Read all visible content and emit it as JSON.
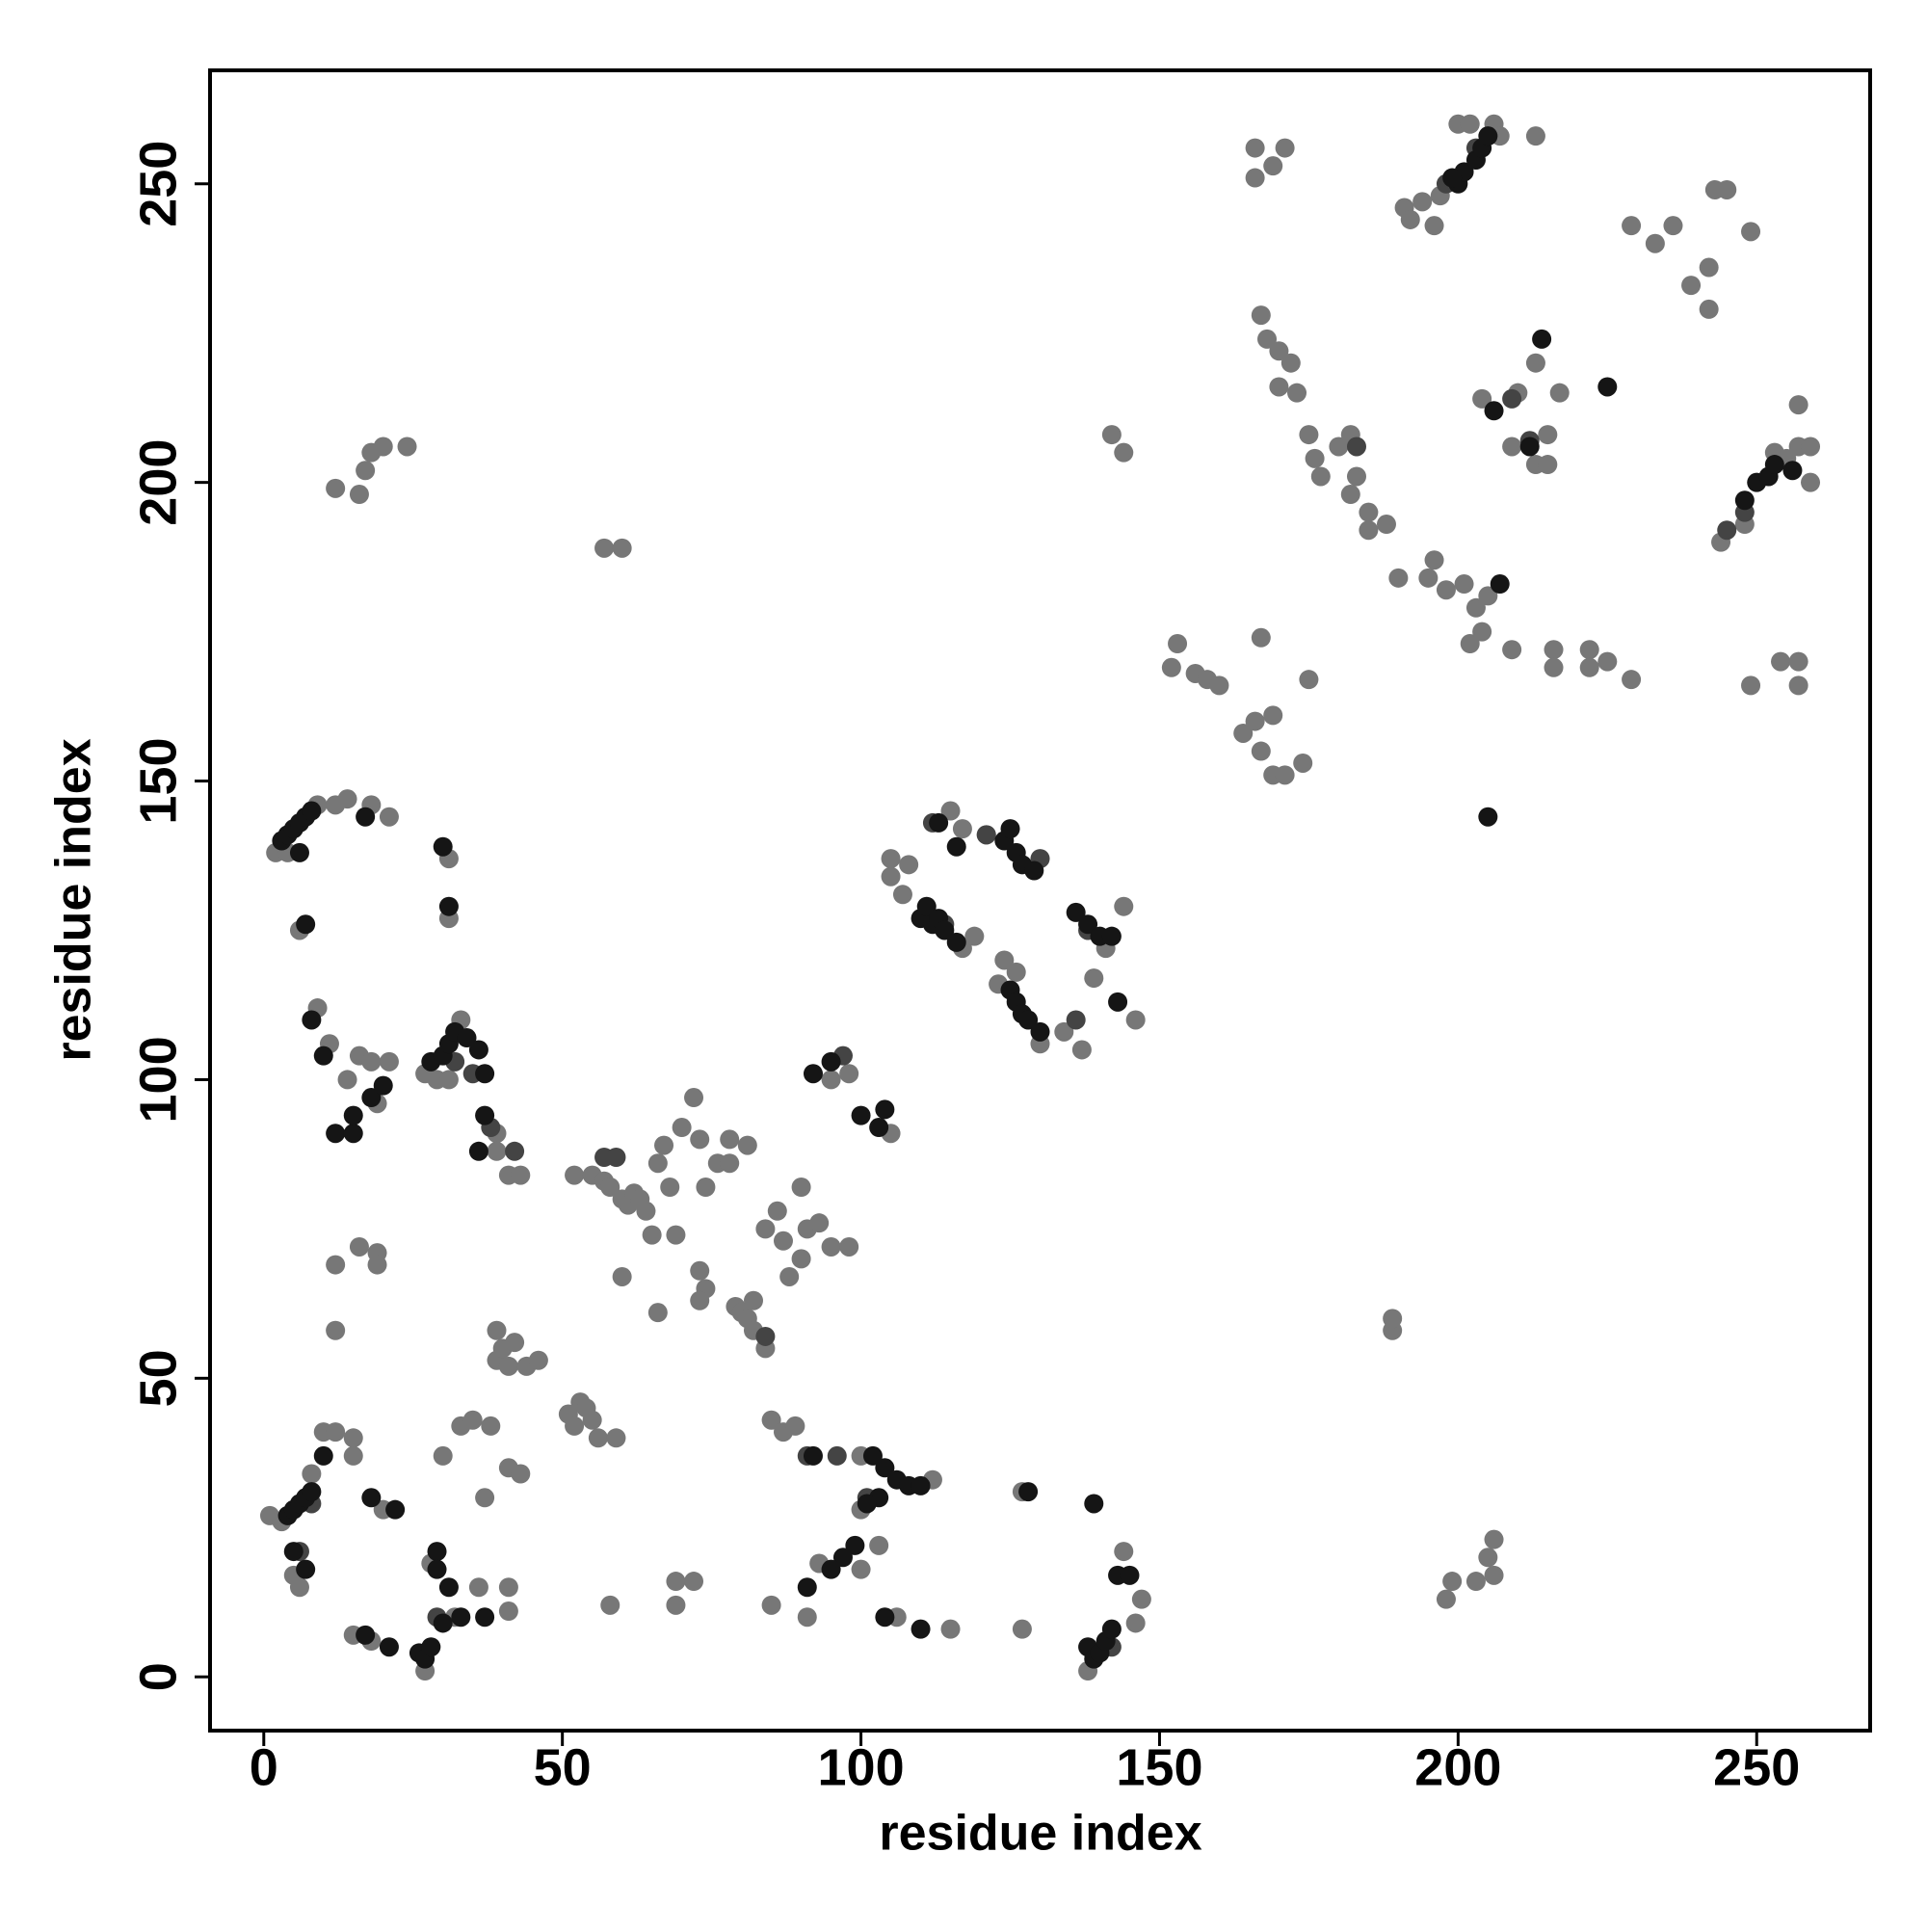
{
  "chart_data": {
    "type": "scatter",
    "x_label": "residue index",
    "y_label": "residue index",
    "xlim": [
      -9,
      269
    ],
    "ylim": [
      -9,
      269
    ],
    "xticks": [
      0,
      50,
      100,
      150,
      200,
      250
    ],
    "yticks": [
      0,
      50,
      100,
      150,
      200,
      250
    ],
    "grid": false,
    "series": [
      {
        "color": "#777777",
        "x": [
          2,
          4,
          9,
          12,
          14,
          21,
          18,
          6,
          9,
          11,
          31,
          31,
          16,
          18,
          21,
          19,
          14,
          29,
          31,
          33,
          39,
          41,
          43,
          39,
          12,
          16,
          19,
          19,
          12,
          15,
          10,
          12,
          8,
          1,
          3,
          5,
          6,
          15,
          15,
          18,
          20,
          27,
          30,
          32,
          36,
          37,
          33,
          35,
          38,
          39,
          39,
          41,
          40,
          42,
          44,
          46,
          41,
          41,
          41,
          43,
          51,
          52,
          53,
          54,
          55,
          56,
          59,
          52,
          55,
          57,
          58,
          60,
          61,
          62,
          63,
          64,
          65,
          66,
          69,
          67,
          68,
          70,
          72,
          73,
          76,
          78,
          78,
          81,
          74,
          73,
          74,
          79,
          80,
          81,
          82,
          84,
          87,
          88,
          90,
          91,
          93,
          95,
          98,
          90,
          86,
          84,
          85,
          87,
          89,
          85,
          91,
          93,
          100,
          103,
          100,
          106,
          115,
          127,
          127,
          138,
          144,
          146,
          147,
          69,
          69,
          72,
          58,
          60,
          66,
          73,
          95,
          98,
          105,
          100,
          112,
          117,
          115,
          105,
          105,
          107,
          108,
          117,
          119,
          124,
          126,
          123,
          130,
          134,
          137,
          139,
          141,
          146,
          144,
          121,
          12,
          16,
          17,
          18,
          20,
          24,
          57,
          60,
          142,
          144,
          152,
          153,
          156,
          158,
          160,
          164,
          166,
          167,
          169,
          171,
          174,
          167,
          175,
          169,
          166,
          166,
          169,
          171,
          167,
          168,
          170,
          172,
          170,
          173,
          175,
          176,
          177,
          180,
          182,
          182,
          183,
          185,
          185,
          188,
          190,
          191,
          192,
          194,
          196,
          197,
          200,
          202,
          206,
          207,
          213,
          195,
          196,
          198,
          201,
          203,
          205,
          202,
          204,
          209,
          210,
          204,
          209,
          213,
          215,
          215,
          213,
          217,
          216,
          216,
          222,
          222,
          225,
          229,
          229,
          233,
          236,
          239,
          242,
          242,
          243,
          245,
          244,
          248,
          249,
          253,
          255,
          257,
          257,
          259,
          259,
          254,
          257,
          257,
          249,
          189,
          189,
          198,
          199,
          203,
          205,
          206,
          206,
          28,
          27,
          82
        ],
        "values": [
          138,
          138,
          146,
          146,
          147,
          144,
          146,
          125,
          112,
          106,
          137,
          127,
          104,
          103,
          103,
          96,
          100,
          100,
          100,
          110,
          91,
          84,
          84,
          88,
          69,
          72,
          71,
          69,
          58,
          40,
          41,
          41,
          34,
          27,
          26,
          17,
          15,
          37,
          7,
          6,
          28,
          1,
          37,
          10,
          15,
          30,
          42,
          43,
          42,
          58,
          53,
          52,
          55,
          56,
          52,
          53,
          15,
          11,
          35,
          34,
          44,
          42,
          46,
          45,
          43,
          40,
          40,
          84,
          84,
          83,
          82,
          80,
          79,
          81,
          80,
          78,
          74,
          86,
          74,
          89,
          82,
          92,
          97,
          90,
          86,
          86,
          90,
          89,
          82,
          68,
          65,
          62,
          61,
          60,
          58,
          55,
          73,
          67,
          70,
          75,
          76,
          72,
          72,
          82,
          78,
          75,
          43,
          41,
          42,
          12,
          10,
          19,
          18,
          22,
          28,
          10,
          8,
          8,
          31,
          1,
          21,
          9,
          13,
          12,
          16,
          16,
          12,
          67,
          61,
          63,
          100,
          101,
          91,
          37,
          33,
          142,
          145,
          137,
          134,
          131,
          136,
          122,
          124,
          120,
          118,
          116,
          106,
          108,
          105,
          117,
          122,
          110,
          129,
          141,
          199,
          198,
          202,
          205,
          206,
          206,
          189,
          189,
          208,
          205,
          169,
          173,
          168,
          167,
          166,
          158,
          160,
          155,
          151,
          151,
          153,
          174,
          167,
          161,
          251,
          256,
          253,
          256,
          228,
          224,
          222,
          220,
          216,
          215,
          208,
          204,
          201,
          206,
          208,
          198,
          201,
          192,
          195,
          193,
          184,
          246,
          244,
          247,
          243,
          248,
          260,
          260,
          260,
          258,
          258,
          184,
          187,
          182,
          183,
          179,
          181,
          173,
          175,
          172,
          215,
          214,
          206,
          203,
          208,
          203,
          220,
          215,
          172,
          169,
          172,
          169,
          170,
          167,
          243,
          240,
          243,
          233,
          229,
          236,
          249,
          249,
          190,
          193,
          242,
          205,
          204,
          206,
          213,
          206,
          200,
          170,
          170,
          166,
          166,
          58,
          60,
          13,
          16,
          16,
          20,
          17,
          23,
          19,
          101,
          63
        ]
      },
      {
        "color": "#444444",
        "x": [
          6,
          32,
          35,
          42,
          57,
          59,
          97,
          138,
          121,
          112,
          183,
          209,
          245,
          248,
          212,
          91,
          96,
          203,
          198,
          8,
          29,
          142,
          84,
          38,
          101,
          136,
          130,
          114
        ],
        "values": [
          21,
          103,
          101,
          88,
          87,
          87,
          104,
          125,
          141,
          143,
          206,
          214,
          192,
          195,
          207,
          37,
          37,
          256,
          250,
          29,
          10,
          5,
          57,
          92,
          30,
          110,
          137,
          126
        ]
      },
      {
        "color": "#151515",
        "x": [
          3,
          4,
          5,
          6,
          7,
          8,
          6,
          17,
          7,
          30,
          31,
          8,
          10,
          12,
          15,
          15,
          18,
          20,
          28,
          30,
          31,
          32,
          34,
          36,
          37,
          37,
          36,
          4,
          5,
          6,
          7,
          8,
          10,
          5,
          7,
          17,
          18,
          21,
          22,
          26,
          27,
          28,
          29,
          29,
          31,
          30,
          33,
          37,
          110,
          111,
          112,
          113,
          114,
          116,
          113,
          116,
          124,
          125,
          126,
          127,
          129,
          125,
          126,
          127,
          128,
          130,
          136,
          138,
          140,
          142,
          143,
          104,
          100,
          103,
          95,
          92,
          102,
          104,
          106,
          108,
          110,
          103,
          101,
          99,
          97,
          95,
          91,
          104,
          110,
          92,
          139,
          138,
          139,
          140,
          141,
          142,
          143,
          145,
          128,
          200,
          201,
          203,
          204,
          205,
          199,
          206,
          212,
          250,
          252,
          253,
          256,
          248,
          207,
          205,
          214,
          225
        ],
        "values": [
          140,
          141,
          142,
          143,
          144,
          145,
          138,
          144,
          126,
          139,
          129,
          110,
          104,
          91,
          91,
          94,
          97,
          99,
          103,
          104,
          106,
          108,
          107,
          105,
          101,
          94,
          88,
          27,
          28,
          29,
          30,
          31,
          37,
          21,
          18,
          7,
          30,
          5,
          28,
          4,
          3,
          5,
          21,
          18,
          15,
          9,
          10,
          10,
          127,
          129,
          126,
          127,
          125,
          123,
          143,
          139,
          140,
          142,
          138,
          136,
          135,
          115,
          113,
          111,
          110,
          108,
          128,
          126,
          124,
          124,
          113,
          95,
          94,
          92,
          103,
          101,
          37,
          35,
          33,
          32,
          32,
          30,
          29,
          22,
          20,
          18,
          15,
          10,
          8,
          37,
          29,
          5,
          3,
          4,
          6,
          8,
          17,
          17,
          31,
          250,
          252,
          254,
          256,
          258,
          251,
          212,
          206,
          200,
          201,
          203,
          202,
          197,
          183,
          144,
          224,
          216
        ]
      }
    ]
  }
}
